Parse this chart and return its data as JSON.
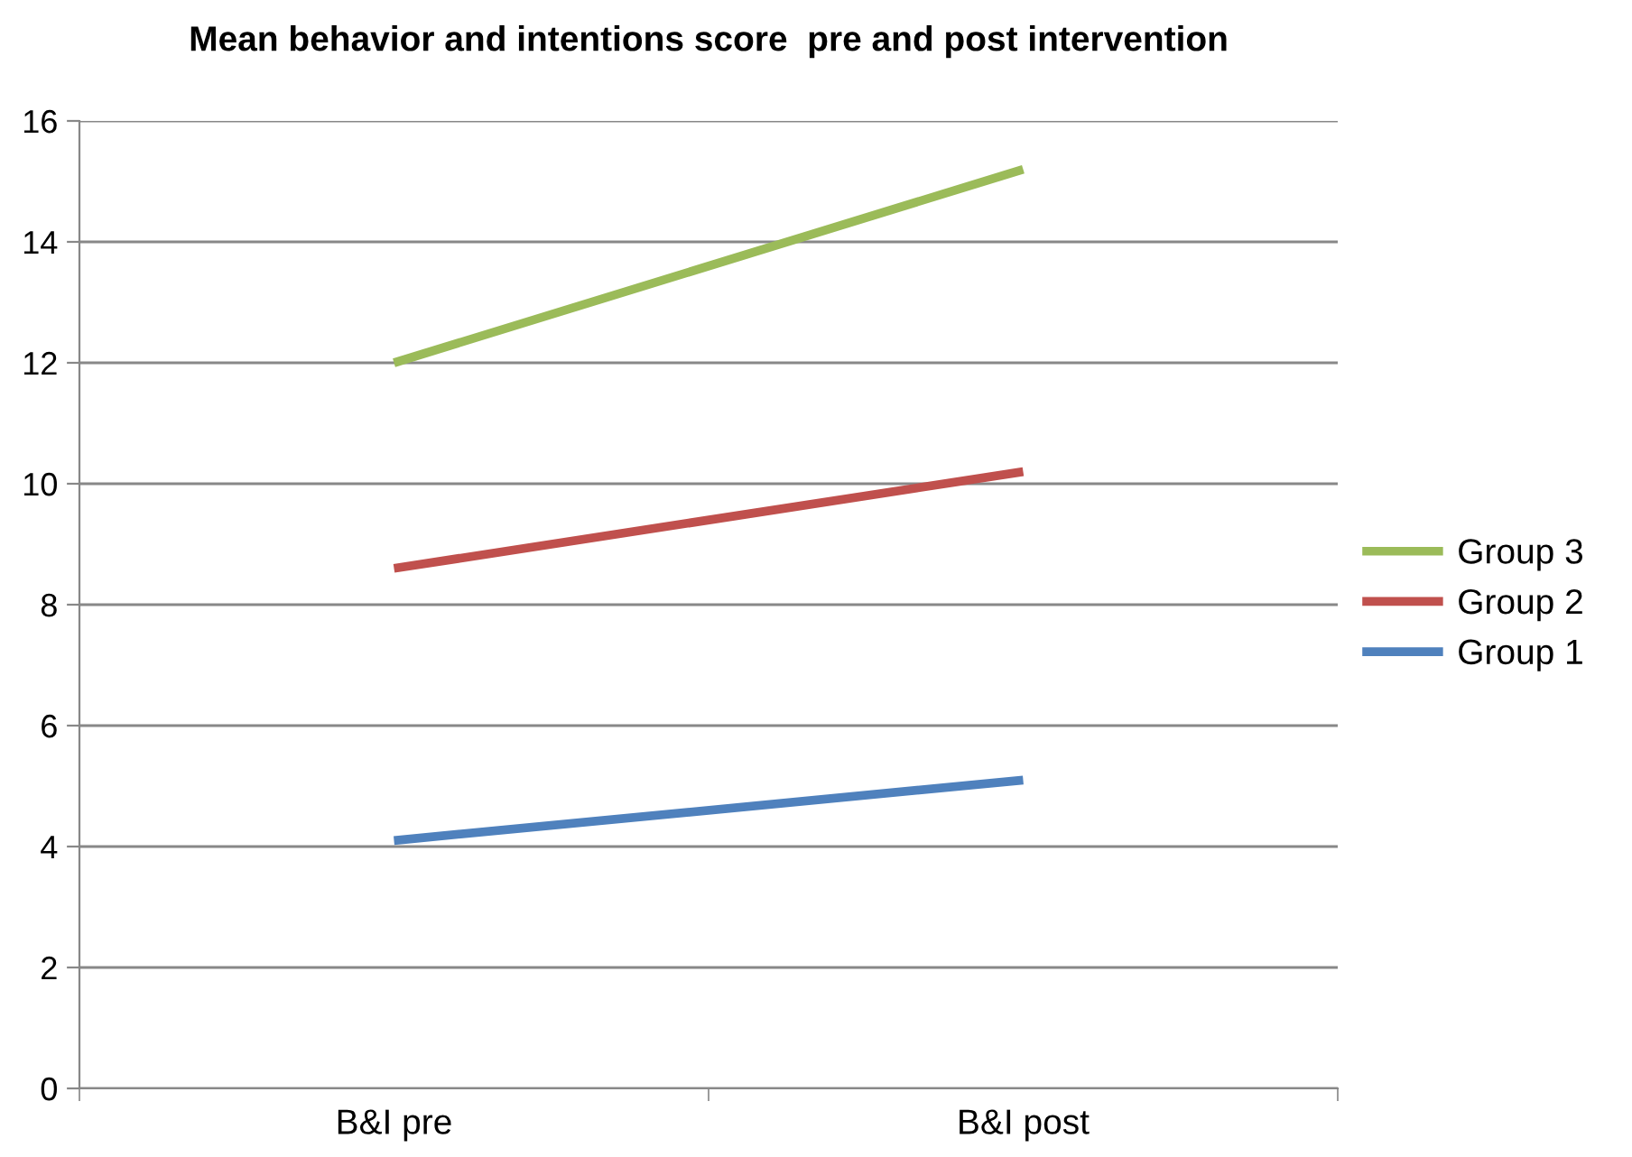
{
  "chart_data": {
    "type": "line",
    "title": "Mean behavior and intentions score  pre and post intervention",
    "categories": [
      "B&I pre",
      "B&I post"
    ],
    "series": [
      {
        "name": "Group 1",
        "color": "#4f81bd",
        "values": [
          4.1,
          5.1
        ]
      },
      {
        "name": "Group 2",
        "color": "#c0504d",
        "values": [
          8.6,
          10.2
        ]
      },
      {
        "name": "Group 3",
        "color": "#9bbb59",
        "values": [
          12.0,
          15.2
        ]
      }
    ],
    "ylim": [
      0,
      16
    ],
    "yticks": [
      0,
      2,
      4,
      6,
      8,
      10,
      12,
      14,
      16
    ],
    "grid": "y",
    "legend": "right",
    "marker": "none",
    "line_style": "solid"
  }
}
